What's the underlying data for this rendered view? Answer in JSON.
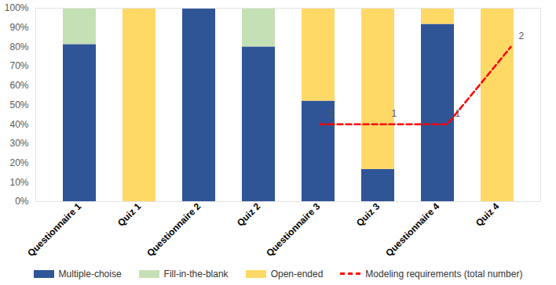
{
  "chart_data": {
    "type": "bar",
    "stacked": true,
    "categories": [
      "Questionnaire 1",
      "Quiz 1",
      "Questionnaire 2",
      "Quiz 2",
      "Questionnaire 3",
      "Quiz 3",
      "Questionnaire 4",
      "Quiz 4"
    ],
    "series": [
      {
        "name": "Multiple-choise",
        "color": "#2f5597",
        "values": [
          81.25,
          0,
          100,
          80,
          52,
          16.7,
          91.7,
          0
        ]
      },
      {
        "name": "Fill-in-the-blank",
        "color": "#c5e0b4",
        "values": [
          18.75,
          0,
          0,
          20,
          0,
          0,
          0,
          0
        ]
      },
      {
        "name": "Open-ended",
        "color": "#ffd966",
        "values": [
          0,
          100,
          0,
          0,
          48,
          83.3,
          8.3,
          100
        ]
      },
      {
        "name": "Modeling requirements (total number)",
        "type": "line",
        "line_style": "dashed",
        "color": "#ff0000",
        "axis": "y2",
        "data_labels": true,
        "values": [
          null,
          null,
          null,
          null,
          1,
          1,
          1,
          2
        ]
      }
    ],
    "ylim": [
      0,
      100
    ],
    "yticks": [
      {
        "value": 0,
        "label": "0%"
      },
      {
        "value": 10,
        "label": "10%"
      },
      {
        "value": 20,
        "label": "20%"
      },
      {
        "value": 30,
        "label": "30%"
      },
      {
        "value": 40,
        "label": "40%"
      },
      {
        "value": 50,
        "label": "50%"
      },
      {
        "value": 60,
        "label": "60%"
      },
      {
        "value": 70,
        "label": "70%"
      },
      {
        "value": 80,
        "label": "80%"
      },
      {
        "value": 90,
        "label": "90%"
      },
      {
        "value": 100,
        "label": "100%"
      }
    ],
    "y2lim": [
      0,
      2.5
    ],
    "y2ticks": [],
    "legend": "bottom",
    "grid": false
  }
}
